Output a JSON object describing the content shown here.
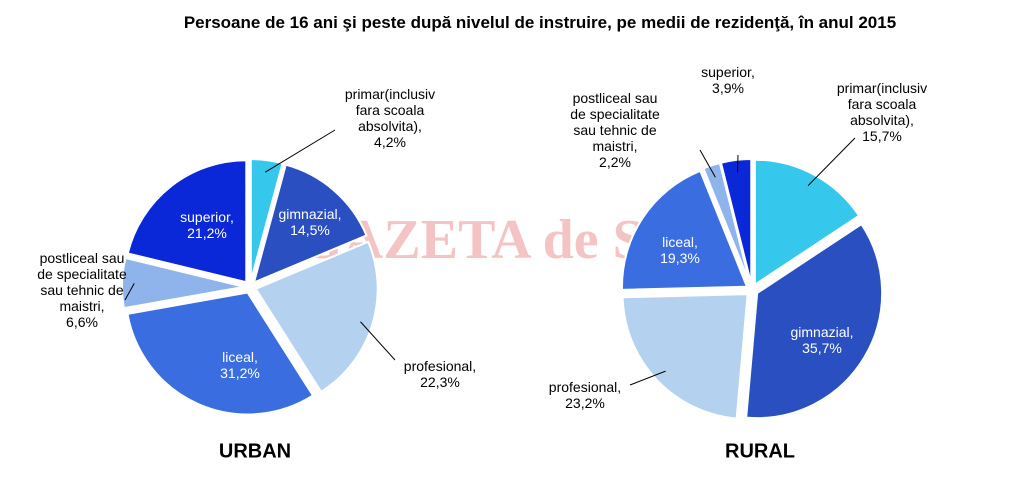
{
  "title": "Persoane de 16 ani şi peste după nivelul de instruire, pe medii de rezidenţă, în anul 2015",
  "watermark": "GAZETA de SUD",
  "chart_data": [
    {
      "type": "pie",
      "title": "URBAN",
      "categories": [
        "primar(inclusiv fara scoala absolvita),",
        "gimnazial,",
        "profesional,",
        "liceal,",
        "postliceal sau de specialitate sau tehnic de maistri,",
        "superior,"
      ],
      "values": [
        4.2,
        14.5,
        22.3,
        31.2,
        6.6,
        21.2
      ],
      "value_labels": [
        "4,2%",
        "14,5%",
        "22,3%",
        "31,2%",
        "6,6%",
        "21,2%"
      ],
      "colors": [
        "#35c8ec",
        "#2a4fc0",
        "#b4d2f0",
        "#3a6ee0",
        "#8fb4ec",
        "#0a28d8"
      ]
    },
    {
      "type": "pie",
      "title": "RURAL",
      "categories": [
        "primar(inclusiv fara scoala absolvita),",
        "gimnazial,",
        "profesional,",
        "liceal,",
        "postliceal sau de specialitate sau tehnic de maistri,",
        "superior,"
      ],
      "values": [
        15.7,
        35.7,
        23.2,
        19.3,
        2.2,
        3.9
      ],
      "value_labels": [
        "15,7%",
        "35,7%",
        "23,2%",
        "19,3%",
        "2,2%",
        "3,9%"
      ],
      "colors": [
        "#35c8ec",
        "#2a4fc0",
        "#b4d2f0",
        "#3a6ee0",
        "#8fb4ec",
        "#0a28d8"
      ]
    }
  ]
}
